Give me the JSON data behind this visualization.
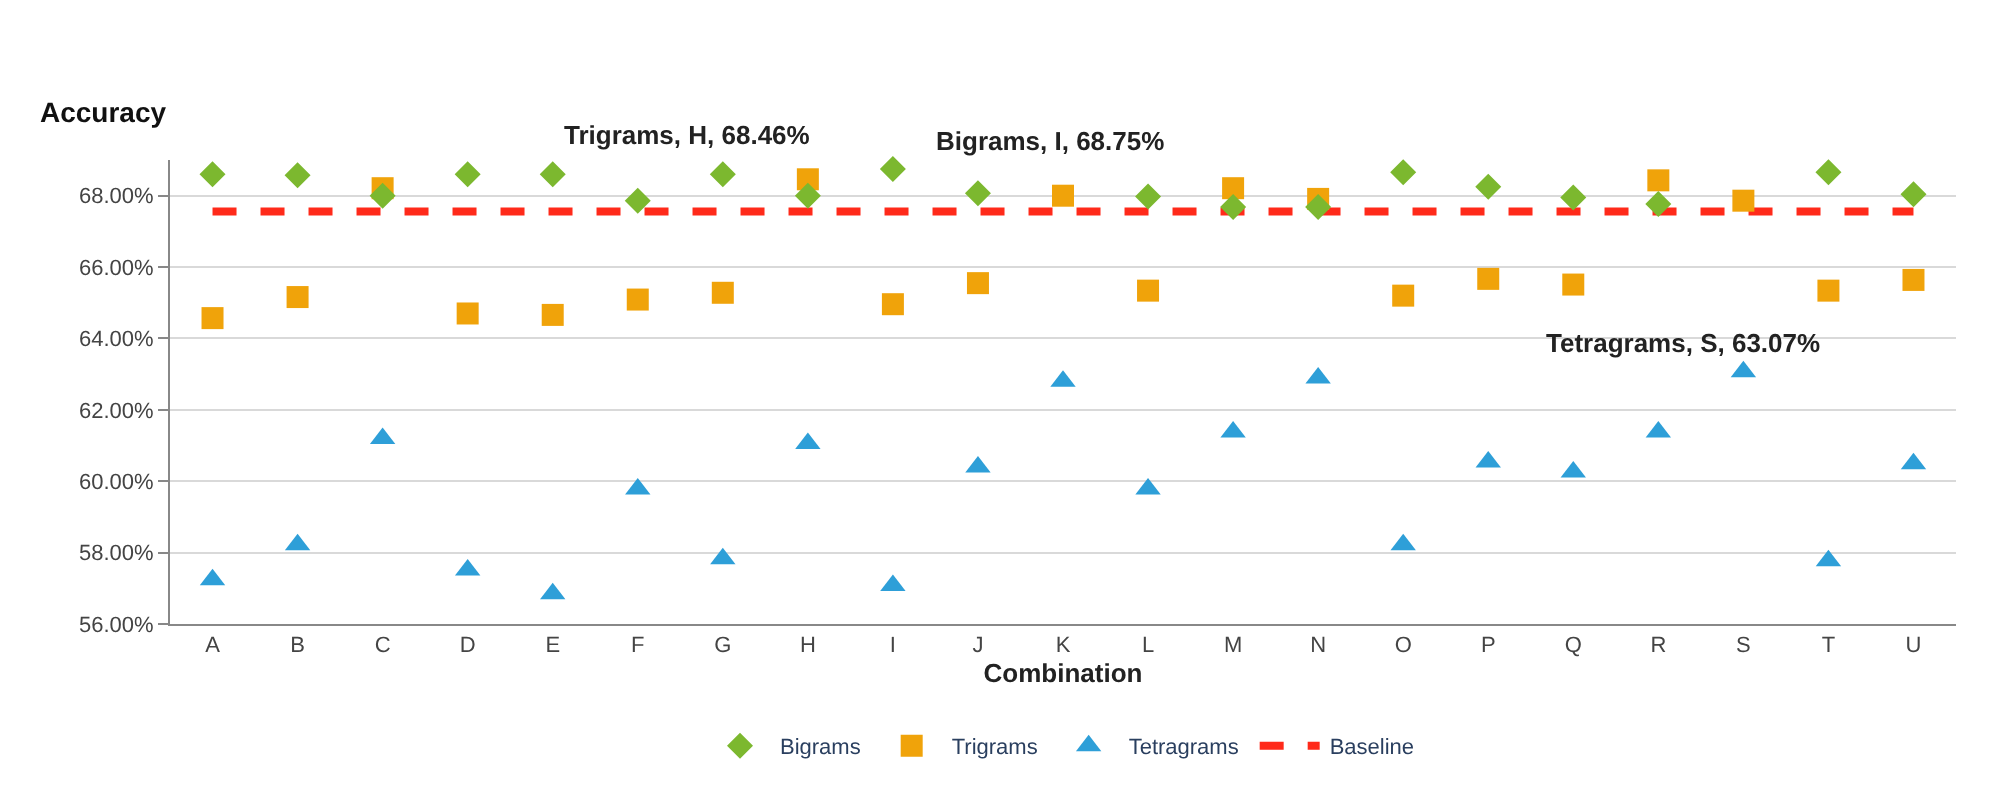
{
  "chart_data": {
    "type": "scatter",
    "xlabel": "Combination",
    "ylabel": "Accuracy",
    "categories": [
      "A",
      "B",
      "C",
      "D",
      "E",
      "F",
      "G",
      "H",
      "I",
      "J",
      "K",
      "L",
      "M",
      "N",
      "O",
      "P",
      "Q",
      "R",
      "S",
      "T",
      "U"
    ],
    "series": [
      {
        "name": "Bigrams",
        "color": "#7cb82f",
        "marker": "diamond",
        "values": [
          68.6,
          68.57,
          68.0,
          68.6,
          68.6,
          67.86,
          68.6,
          68.0,
          68.75,
          68.07,
          null,
          67.98,
          67.68,
          67.68,
          68.66,
          68.25,
          67.95,
          67.77,
          null,
          68.66,
          68.04
        ]
      },
      {
        "name": "Trigrams",
        "color": "#f0a30a",
        "marker": "square",
        "values": [
          64.57,
          65.16,
          68.21,
          64.7,
          64.66,
          65.09,
          65.28,
          68.46,
          64.96,
          65.55,
          68.0,
          65.34,
          68.21,
          67.91,
          65.2,
          65.67,
          65.51,
          68.43,
          67.86,
          65.34,
          65.64
        ]
      },
      {
        "name": "Tetragrams",
        "color": "#2e9fd8",
        "marker": "triangle",
        "values": [
          57.24,
          58.22,
          61.2,
          57.51,
          56.85,
          59.78,
          57.83,
          61.06,
          57.08,
          60.4,
          62.8,
          59.78,
          61.38,
          62.89,
          58.22,
          60.54,
          60.26,
          61.38,
          63.07,
          57.77,
          60.49
        ]
      },
      {
        "name": "Baseline",
        "color": "#ff2a1a",
        "type": "line",
        "line_style": "dashed",
        "marker": "none",
        "values": [
          67.56,
          67.56,
          67.56,
          67.56,
          67.56,
          67.56,
          67.56,
          67.56,
          67.56,
          67.56,
          67.56,
          67.56,
          67.56,
          67.56,
          67.56,
          67.56,
          67.56,
          67.56,
          67.56,
          67.56,
          67.56
        ]
      }
    ],
    "ylim": [
      56,
      69
    ],
    "yticks": [
      {
        "value": 56,
        "label": "56.00%"
      },
      {
        "value": 58,
        "label": "58.00%"
      },
      {
        "value": 60,
        "label": "60.00%"
      },
      {
        "value": 62,
        "label": "62.00%"
      },
      {
        "value": 64,
        "label": "64.00%"
      },
      {
        "value": 66,
        "label": "66.00%"
      },
      {
        "value": 68,
        "label": "68.00%"
      }
    ],
    "grid": "y",
    "legend": "bottom",
    "annotations": [
      {
        "text": "Trigrams, H, 68.46%",
        "x": "H",
        "y": 68.46
      },
      {
        "text": "Bigrams, I, 68.75%",
        "x": "I",
        "y": 68.75
      },
      {
        "text": "Tetragrams, S, 63.07%",
        "x": "S",
        "y": 63.07
      }
    ]
  }
}
